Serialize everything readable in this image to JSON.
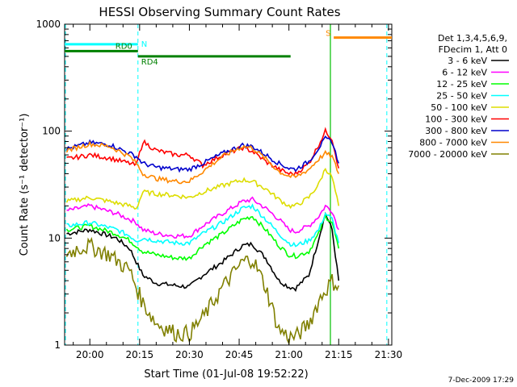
{
  "chart_data": {
    "type": "line",
    "title": "HESSI Observing Summary Count Rates",
    "xlabel": "Start Time (01-Jul-08 19:52:22)",
    "ylabel": "Count Rate (s⁻¹ detector⁻¹)",
    "y_scale": "log",
    "x_unit": "minutes of day",
    "xlim": [
      1192.4,
      1291.0
    ],
    "ylim": [
      1,
      1000
    ],
    "x_ticks": [
      {
        "x": 1200,
        "label": "20:00"
      },
      {
        "x": 1215,
        "label": "20:15"
      },
      {
        "x": 1230,
        "label": "20:30"
      },
      {
        "x": 1245,
        "label": "20:45"
      },
      {
        "x": 1260,
        "label": "21:00"
      },
      {
        "x": 1275,
        "label": "21:15"
      },
      {
        "x": 1290,
        "label": "21:30"
      }
    ],
    "y_ticks": [
      {
        "y": 1,
        "label": "1"
      },
      {
        "y": 10,
        "label": "10"
      },
      {
        "y": 100,
        "label": "100"
      },
      {
        "y": 1000,
        "label": "1000"
      }
    ],
    "legend_title_lines": [
      "Det 1,3,4,5,6,9,",
      "FDecim 1, Att 0"
    ],
    "legend_position": "right, outside plot",
    "series": [
      {
        "name": "3 - 6 keV",
        "color": "#000000",
        "x": [
          1193,
          1200,
          1208,
          1212,
          1214,
          1216,
          1220,
          1226,
          1230,
          1234,
          1240,
          1246,
          1249,
          1253,
          1257,
          1260,
          1262,
          1266,
          1269,
          1271,
          1273,
          1275
        ],
        "values": [
          11,
          12,
          10,
          8,
          6,
          4.5,
          3.8,
          3.6,
          3.5,
          4.5,
          6,
          8.5,
          8.8,
          6.5,
          4,
          3.5,
          3.4,
          4.5,
          10,
          17,
          12,
          4
        ]
      },
      {
        "name": "6 - 12 keV",
        "color": "#ff00ff",
        "x": [
          1193,
          1200,
          1208,
          1212,
          1214,
          1216,
          1220,
          1226,
          1230,
          1234,
          1240,
          1246,
          1249,
          1253,
          1257,
          1260,
          1262,
          1266,
          1269,
          1271,
          1273,
          1275
        ],
        "values": [
          18,
          20,
          17,
          15,
          14,
          12,
          11,
          10.5,
          10.5,
          13,
          17,
          22,
          23,
          19,
          15,
          12,
          11.5,
          13,
          16,
          20,
          18,
          12
        ]
      },
      {
        "name": "12 - 25 keV",
        "color": "#00ff00",
        "x": [
          1193,
          1200,
          1208,
          1212,
          1214,
          1216,
          1220,
          1226,
          1230,
          1234,
          1240,
          1246,
          1249,
          1253,
          1257,
          1260,
          1262,
          1266,
          1269,
          1271,
          1273,
          1275
        ],
        "values": [
          12,
          13,
          11,
          9.5,
          8.5,
          7.5,
          7,
          6.5,
          6.5,
          8.5,
          11,
          15,
          16,
          12,
          8.5,
          7,
          6.8,
          7.5,
          11,
          16,
          14,
          8
        ]
      },
      {
        "name": "25 - 50 keV",
        "color": "#00ffff",
        "x": [
          1193,
          1200,
          1208,
          1212,
          1214,
          1216,
          1220,
          1226,
          1230,
          1234,
          1240,
          1246,
          1249,
          1253,
          1257,
          1260,
          1262,
          1266,
          1269,
          1271,
          1273,
          1275
        ],
        "values": [
          13,
          14,
          12,
          10.5,
          9.5,
          10,
          9.5,
          9,
          9,
          11,
          14,
          19,
          20,
          15,
          11,
          9,
          8.5,
          9.5,
          12,
          17,
          15,
          9
        ]
      },
      {
        "name": "50 - 100 keV",
        "color": "#dddd00",
        "x": [
          1193,
          1200,
          1206,
          1212,
          1214,
          1216,
          1220,
          1226,
          1230,
          1234,
          1240,
          1246,
          1249,
          1253,
          1257,
          1260,
          1262,
          1266,
          1269,
          1271,
          1273,
          1275
        ],
        "values": [
          22,
          24,
          22,
          20,
          19,
          27,
          26,
          25,
          24,
          27,
          31,
          35,
          34,
          29,
          23,
          20,
          20,
          24,
          32,
          45,
          37,
          20
        ]
      },
      {
        "name": "100 - 300 keV",
        "color": "#ff0000",
        "x": [
          1193,
          1200,
          1206,
          1212,
          1214,
          1216,
          1220,
          1226,
          1230,
          1234,
          1240,
          1246,
          1249,
          1253,
          1257,
          1260,
          1262,
          1266,
          1269,
          1271,
          1273,
          1275
        ],
        "values": [
          55,
          60,
          56,
          50,
          48,
          80,
          66,
          60,
          60,
          48,
          60,
          70,
          65,
          52,
          44,
          40,
          40,
          50,
          75,
          100,
          85,
          45
        ]
      },
      {
        "name": "300 - 800 keV",
        "color": "#0000cc",
        "x": [
          1193,
          1200,
          1206,
          1212,
          1214,
          1216,
          1220,
          1226,
          1230,
          1234,
          1240,
          1246,
          1249,
          1253,
          1257,
          1260,
          1262,
          1266,
          1269,
          1271,
          1273,
          1275
        ],
        "values": [
          68,
          78,
          75,
          62,
          58,
          50,
          46,
          44,
          44,
          50,
          62,
          74,
          72,
          60,
          50,
          45,
          44,
          52,
          70,
          85,
          80,
          50
        ]
      },
      {
        "name": "800 - 7000 keV",
        "color": "#ff8800",
        "x": [
          1193,
          1200,
          1206,
          1212,
          1214,
          1216,
          1220,
          1226,
          1230,
          1234,
          1240,
          1246,
          1249,
          1253,
          1257,
          1260,
          1262,
          1266,
          1269,
          1271,
          1273,
          1275
        ],
        "values": [
          66,
          76,
          72,
          58,
          50,
          40,
          36,
          34,
          34,
          42,
          58,
          72,
          70,
          55,
          42,
          38,
          37,
          44,
          55,
          62,
          58,
          40
        ]
      },
      {
        "name": "7000 - 20000 keV",
        "color": "#808000",
        "x": [
          1193,
          1196,
          1200,
          1206,
          1212,
          1214,
          1216,
          1220,
          1226,
          1230,
          1234,
          1240,
          1246,
          1249,
          1253,
          1257,
          1260,
          1262,
          1266,
          1269,
          1271,
          1273,
          1275
        ],
        "values": [
          7,
          8,
          8.5,
          7,
          5,
          3.5,
          2.5,
          1.6,
          1.3,
          1.3,
          1.8,
          3.5,
          6,
          6.5,
          3.5,
          1.4,
          1.2,
          1.2,
          1.6,
          2.6,
          3.3,
          4,
          3.6
        ]
      }
    ],
    "annotations": [
      {
        "label": "N",
        "color": "#00ffff",
        "x_start": 1192.4,
        "x_end": 1214.5,
        "y": 650
      },
      {
        "label": "RD0",
        "color": "#008000",
        "x_start": 1192.4,
        "x_end": 1214.5,
        "y": 560
      },
      {
        "label": "RD4",
        "color": "#008000",
        "x_start": 1214.5,
        "x_end": 1260.5,
        "y": 500
      },
      {
        "label": "S",
        "color": "#ff8800",
        "x_start": 1273.5,
        "x_end": 1291,
        "y": 750
      }
    ],
    "colors": {
      "saa_marker": "#00ffff",
      "flare_marker": "#00c000"
    }
  },
  "footer": {
    "timestamp": "7-Dec-2009 17:29"
  }
}
